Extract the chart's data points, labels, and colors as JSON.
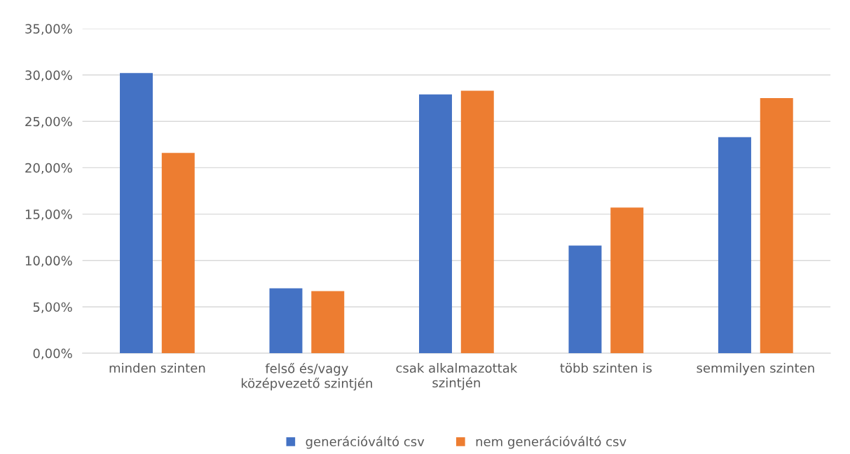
{
  "chart_data": {
    "type": "bar",
    "categories": [
      "minden szinten",
      "felső és/vagy\nközépvezető szintjén",
      "csak alkalmazottak\nszintjén",
      "több szinten is",
      "semmilyen szinten"
    ],
    "series": [
      {
        "name": "generációváltó csv",
        "color": "#4472c4",
        "values": [
          30.2,
          7.0,
          27.9,
          11.6,
          23.3
        ]
      },
      {
        "name": "nem generációváltó csv",
        "color": "#ed7d31",
        "values": [
          21.6,
          6.7,
          28.3,
          15.7,
          27.5
        ]
      }
    ],
    "ylim": [
      0,
      35
    ],
    "yticks": [
      {
        "value": 0,
        "label": "0,00%"
      },
      {
        "value": 5,
        "label": "5,00%"
      },
      {
        "value": 10,
        "label": "10,00%"
      },
      {
        "value": 15,
        "label": "15,00%"
      },
      {
        "value": 20,
        "label": "20,00%"
      },
      {
        "value": 25,
        "label": "25,00%"
      },
      {
        "value": 30,
        "label": "30,00%"
      },
      {
        "value": 35,
        "label": "35,00%"
      }
    ],
    "grid": "y",
    "legend": "bottom"
  }
}
